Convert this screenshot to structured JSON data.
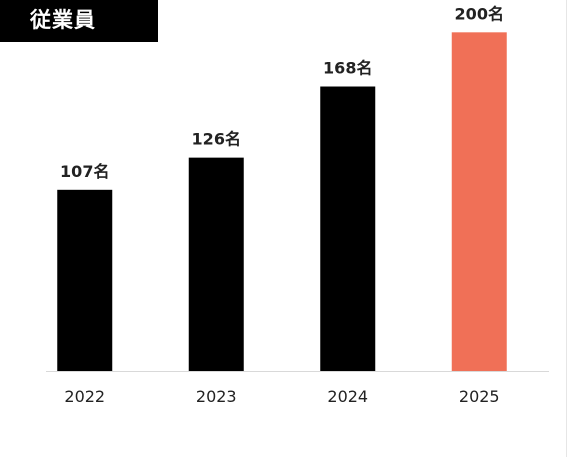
{
  "header": {
    "title": "従業員"
  },
  "colors": {
    "bar": "#000000",
    "highlight": "#f07057",
    "axis": "#d9d9d9",
    "text": "#222222"
  },
  "chart_data": {
    "type": "bar",
    "title": "従業員",
    "categories": [
      "2022",
      "2023",
      "2024",
      "2025"
    ],
    "values": [
      107,
      126,
      168,
      200
    ],
    "data_labels": [
      "107名",
      "126名",
      "168名",
      "200名"
    ],
    "unit": "名",
    "highlight_index": 3,
    "ylim": [
      0,
      212
    ],
    "grid": false,
    "legend": "none"
  }
}
